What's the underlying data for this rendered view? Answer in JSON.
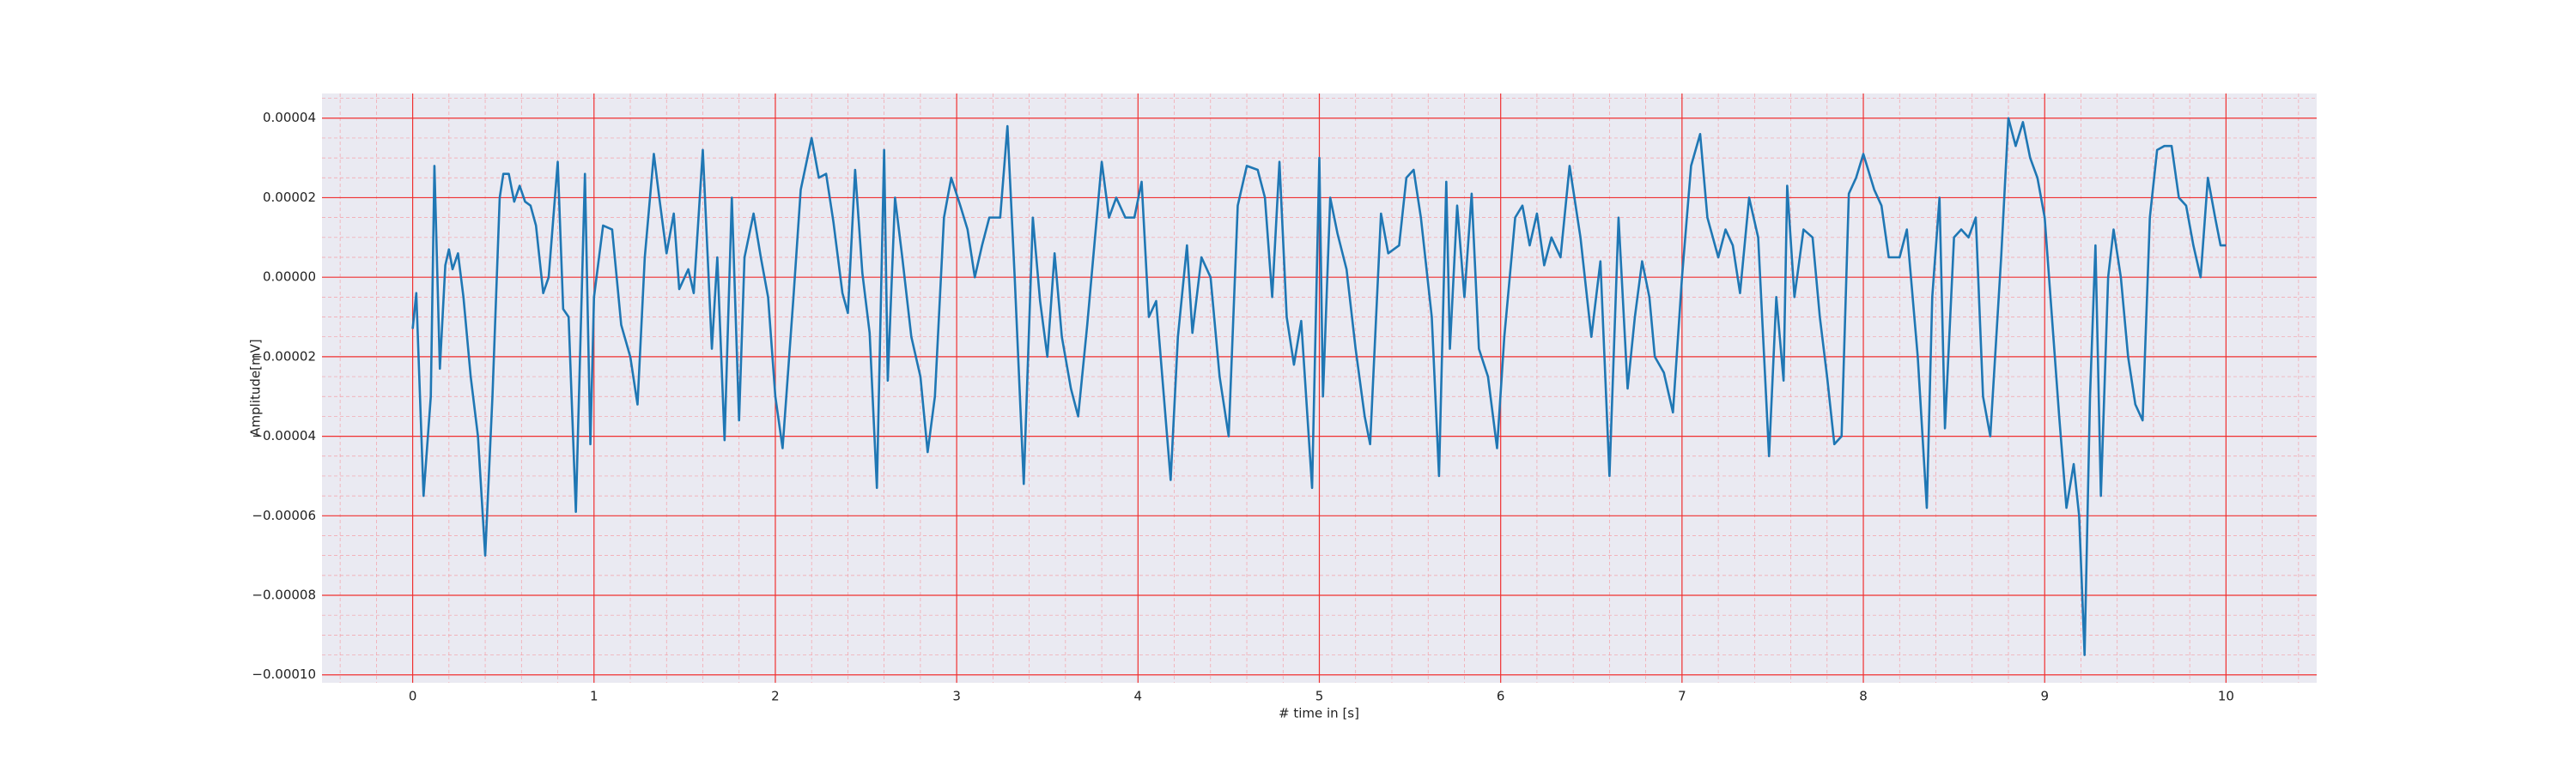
{
  "chart_data": {
    "type": "line",
    "x_label": "# time in [s]",
    "y_label": "Amplitude[mV]",
    "color": "#1f77b4",
    "grid": true,
    "minor_grid": true,
    "xlim": [
      -0.5,
      10.5
    ],
    "ylim": [
      -0.000102,
      4.62e-05
    ],
    "xticks": [
      0,
      1,
      2,
      3,
      4,
      5,
      6,
      7,
      8,
      9,
      10
    ],
    "yticks": [
      {
        "value": 4e-05,
        "label": "0.00004"
      },
      {
        "value": 2e-05,
        "label": "0.00002"
      },
      {
        "value": 0,
        "label": "0.00000"
      },
      {
        "value": -2e-05,
        "label": "−0.00002"
      },
      {
        "value": -4e-05,
        "label": "−0.00004"
      },
      {
        "value": -6e-05,
        "label": "−0.00006"
      },
      {
        "value": -8e-05,
        "label": "−0.00008"
      },
      {
        "value": -0.0001,
        "label": "−0.00010"
      }
    ],
    "x": [
      0.0,
      0.02,
      0.06,
      0.1,
      0.12,
      0.15,
      0.18,
      0.2,
      0.22,
      0.25,
      0.28,
      0.32,
      0.36,
      0.4,
      0.44,
      0.48,
      0.5,
      0.53,
      0.56,
      0.59,
      0.62,
      0.65,
      0.68,
      0.72,
      0.75,
      0.8,
      0.83,
      0.86,
      0.9,
      0.95,
      0.98,
      1.0,
      1.05,
      1.1,
      1.15,
      1.2,
      1.24,
      1.28,
      1.33,
      1.36,
      1.4,
      1.44,
      1.47,
      1.52,
      1.55,
      1.6,
      1.65,
      1.68,
      1.72,
      1.76,
      1.8,
      1.83,
      1.88,
      1.92,
      1.96,
      2.0,
      2.04,
      2.1,
      2.14,
      2.2,
      2.24,
      2.28,
      2.32,
      2.37,
      2.4,
      2.44,
      2.48,
      2.52,
      2.56,
      2.6,
      2.62,
      2.66,
      2.7,
      2.75,
      2.8,
      2.84,
      2.88,
      2.93,
      2.97,
      3.02,
      3.06,
      3.1,
      3.14,
      3.18,
      3.24,
      3.28,
      3.32,
      3.37,
      3.42,
      3.46,
      3.5,
      3.54,
      3.58,
      3.63,
      3.67,
      3.72,
      3.8,
      3.84,
      3.88,
      3.93,
      3.98,
      4.02,
      4.06,
      4.1,
      4.18,
      4.22,
      4.27,
      4.3,
      4.35,
      4.4,
      4.45,
      4.5,
      4.55,
      4.6,
      4.66,
      4.7,
      4.74,
      4.78,
      4.82,
      4.86,
      4.9,
      4.96,
      5.0,
      5.02,
      5.06,
      5.1,
      5.15,
      5.2,
      5.25,
      5.28,
      5.34,
      5.38,
      5.44,
      5.48,
      5.52,
      5.56,
      5.62,
      5.66,
      5.7,
      5.72,
      5.76,
      5.8,
      5.84,
      5.88,
      5.93,
      5.98,
      6.02,
      6.08,
      6.12,
      6.16,
      6.2,
      6.24,
      6.28,
      6.33,
      6.38,
      6.44,
      6.5,
      6.55,
      6.6,
      6.65,
      6.7,
      6.74,
      6.78,
      6.82,
      6.85,
      6.9,
      6.95,
      7.0,
      7.05,
      7.1,
      7.14,
      7.2,
      7.24,
      7.28,
      7.32,
      7.37,
      7.42,
      7.48,
      7.52,
      7.56,
      7.58,
      7.62,
      7.67,
      7.72,
      7.76,
      7.8,
      7.84,
      7.88,
      7.92,
      7.96,
      8.0,
      8.06,
      8.1,
      8.14,
      8.2,
      8.24,
      8.3,
      8.35,
      8.38,
      8.42,
      8.45,
      8.5,
      8.54,
      8.58,
      8.62,
      8.66,
      8.7,
      8.76,
      8.8,
      8.84,
      8.88,
      8.92,
      8.96,
      9.0,
      9.04,
      9.08,
      9.12,
      9.16,
      9.19,
      9.22,
      9.25,
      9.28,
      9.31,
      9.35,
      9.38,
      9.42,
      9.46,
      9.5,
      9.54,
      9.58,
      9.62,
      9.66,
      9.7,
      9.74,
      9.78,
      9.82,
      9.86,
      9.9,
      9.94,
      9.97,
      10.0
    ],
    "values": [
      -1.3e-05,
      -4e-06,
      -5.5e-05,
      -3e-05,
      2.8e-05,
      -2.3e-05,
      3e-06,
      7e-06,
      2e-06,
      6e-06,
      -5e-06,
      -2.5e-05,
      -4e-05,
      -7e-05,
      -3e-05,
      2e-05,
      2.6e-05,
      2.6e-05,
      1.9e-05,
      2.3e-05,
      1.9e-05,
      1.8e-05,
      1.3e-05,
      -4e-06,
      0,
      2.9e-05,
      -8e-06,
      -1e-05,
      -5.9e-05,
      2.6e-05,
      -4.2e-05,
      -5e-06,
      1.3e-05,
      1.2e-05,
      -1.2e-05,
      -2e-05,
      -3.2e-05,
      5e-06,
      3.1e-05,
      2e-05,
      6e-06,
      1.6e-05,
      -3e-06,
      2e-06,
      -4e-06,
      3.2e-05,
      -1.8e-05,
      5e-06,
      -4.1e-05,
      2e-05,
      -3.6e-05,
      5e-06,
      1.6e-05,
      5e-06,
      -5e-06,
      -3e-05,
      -4.3e-05,
      -5e-06,
      2.2e-05,
      3.5e-05,
      2.5e-05,
      2.6e-05,
      1.4e-05,
      -4e-06,
      -9e-06,
      2.7e-05,
      1e-06,
      -1.4e-05,
      -5.3e-05,
      3.2e-05,
      -2.6e-05,
      2e-05,
      5e-06,
      -1.5e-05,
      -2.5e-05,
      -4.4e-05,
      -3e-05,
      1.5e-05,
      2.5e-05,
      1.8e-05,
      1.2e-05,
      0,
      8e-06,
      1.5e-05,
      1.5e-05,
      3.8e-05,
      0,
      -5.2e-05,
      1.5e-05,
      -6e-06,
      -2e-05,
      6e-06,
      -1.5e-05,
      -2.8e-05,
      -3.5e-05,
      -1.2e-05,
      2.9e-05,
      1.5e-05,
      2e-05,
      1.5e-05,
      1.5e-05,
      2.4e-05,
      -1e-05,
      -6e-06,
      -5.1e-05,
      -1.5e-05,
      8e-06,
      -1.4e-05,
      5e-06,
      0,
      -2.5e-05,
      -4e-05,
      1.8e-05,
      2.8e-05,
      2.7e-05,
      2e-05,
      -5e-06,
      2.9e-05,
      -1e-05,
      -2.2e-05,
      -1.1e-05,
      -5.3e-05,
      3e-05,
      -3e-05,
      2e-05,
      1.1e-05,
      2e-06,
      -1.8e-05,
      -3.5e-05,
      -4.2e-05,
      1.6e-05,
      6e-06,
      8e-06,
      2.5e-05,
      2.7e-05,
      1.5e-05,
      -1e-05,
      -5e-05,
      2.4e-05,
      -1.8e-05,
      1.8e-05,
      -5e-06,
      2.1e-05,
      -1.8e-05,
      -2.5e-05,
      -4.3e-05,
      -1.5e-05,
      1.5e-05,
      1.8e-05,
      8e-06,
      1.6e-05,
      3e-06,
      1e-05,
      5e-06,
      2.8e-05,
      1e-05,
      -1.5e-05,
      4e-06,
      -5e-05,
      1.5e-05,
      -2.8e-05,
      -1e-05,
      4e-06,
      -5e-06,
      -2e-05,
      -2.4e-05,
      -3.4e-05,
      0,
      2.8e-05,
      3.6e-05,
      1.5e-05,
      5e-06,
      1.2e-05,
      8e-06,
      -4e-06,
      2e-05,
      1e-05,
      -4.5e-05,
      -5e-06,
      -2.6e-05,
      2.3e-05,
      -5e-06,
      1.2e-05,
      1e-05,
      -1e-05,
      -2.5e-05,
      -4.2e-05,
      -4e-05,
      2.1e-05,
      2.5e-05,
      3.1e-05,
      2.2e-05,
      1.8e-05,
      5e-06,
      5e-06,
      1.2e-05,
      -2e-05,
      -5.8e-05,
      -5e-06,
      2e-05,
      -3.8e-05,
      1e-05,
      1.2e-05,
      1e-05,
      1.5e-05,
      -3e-05,
      -4e-05,
      5e-06,
      4e-05,
      3.3e-05,
      3.9e-05,
      3e-05,
      2.5e-05,
      1.5e-05,
      -1e-05,
      -3.5e-05,
      -5.8e-05,
      -4.7e-05,
      -6e-05,
      -9.5e-05,
      -3e-05,
      8e-06,
      -5.5e-05,
      0,
      1.2e-05,
      0,
      -2e-05,
      -3.2e-05,
      -3.6e-05,
      1.5e-05,
      3.2e-05,
      3.3e-05,
      3.3e-05,
      2e-05,
      1.8e-05,
      8e-06,
      0,
      2.5e-05,
      1.5e-05,
      8e-06,
      8e-06
    ]
  }
}
